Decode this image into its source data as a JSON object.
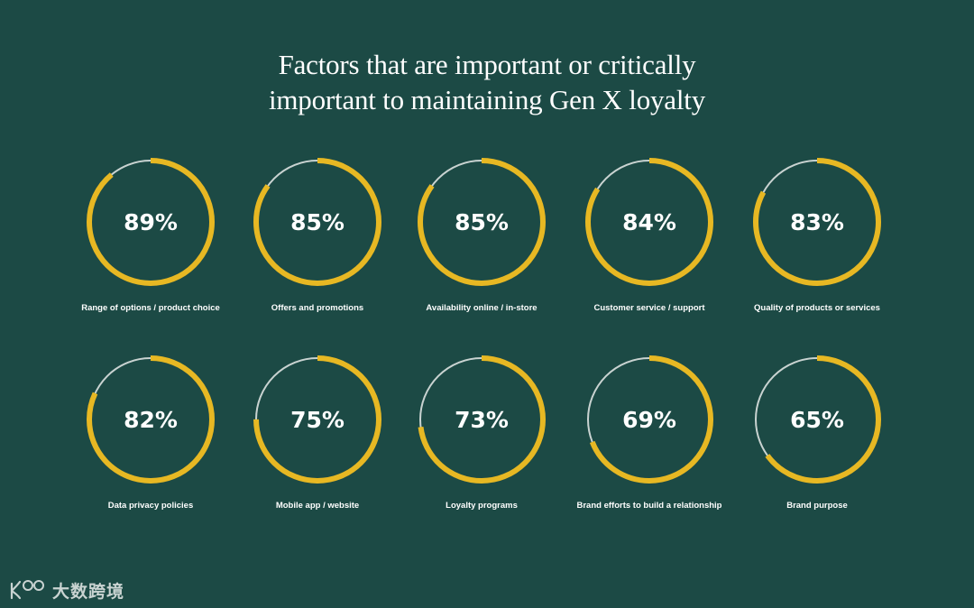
{
  "chart_data": {
    "type": "donut",
    "title_lines": [
      "Factors that are important or critically",
      "important to maintaining Gen X loyalty"
    ],
    "unit": "%",
    "max": 100,
    "colors": {
      "fill": "#e7b823",
      "remainder": "#c9d3d1",
      "background": "#1c4a45"
    },
    "items": [
      {
        "label": "Range of options / product choice",
        "value": 89
      },
      {
        "label": "Offers and promotions",
        "value": 85
      },
      {
        "label": "Availability online / in-store",
        "value": 85
      },
      {
        "label": "Customer service / support",
        "value": 84
      },
      {
        "label": "Quality of products or services",
        "value": 83
      },
      {
        "label": "Data privacy policies",
        "value": 82
      },
      {
        "label": "Mobile app / website",
        "value": 75
      },
      {
        "label": "Loyalty programs",
        "value": 73
      },
      {
        "label": "Brand efforts to build a relationship",
        "value": 69
      },
      {
        "label": "Brand purpose",
        "value": 65
      }
    ]
  },
  "watermark": {
    "text": "大数跨境"
  }
}
